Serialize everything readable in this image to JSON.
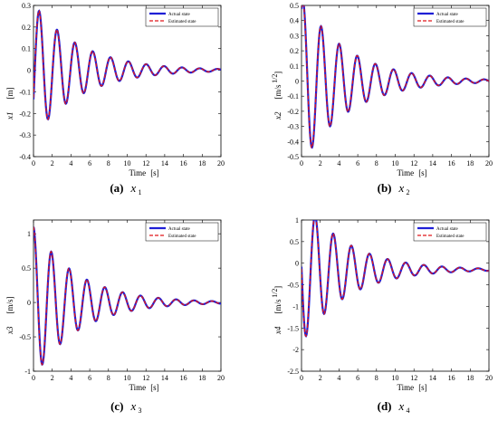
{
  "chart_data": [
    {
      "type": "line",
      "caption_letter": "(a)",
      "caption_var": "x",
      "caption_sub": "1",
      "ylabel_var": "x1",
      "ylabel_unit": "[m]",
      "xlabel": "Time",
      "xunit": "[s]",
      "xlim": [
        0,
        20
      ],
      "ylim": [
        -0.4,
        0.3
      ],
      "xticks": [
        "0",
        "2",
        "4",
        "6",
        "8",
        "10",
        "12",
        "14",
        "16",
        "18",
        "20"
      ],
      "yticks": [
        "-0.4",
        "-0.3",
        "-0.2",
        "-0.1",
        "0",
        "0.1",
        "0.2",
        "0.3"
      ],
      "legend": [
        "Actual state",
        "Estimated state"
      ],
      "legend_position": "top-right",
      "signal": {
        "A": 0.31,
        "alpha": 0.2,
        "omega": 3.3,
        "phi": -0.45,
        "offset": 0.0
      }
    },
    {
      "type": "line",
      "caption_letter": "(b)",
      "caption_var": "x",
      "caption_sub": "2",
      "ylabel_var": "x2",
      "ylabel_unit": "[m/s",
      "ylabel_sup": "1/2",
      "ylabel_close": "]",
      "xlabel": "Time",
      "xunit": "[s]",
      "xlim": [
        0,
        20
      ],
      "ylim": [
        -0.5,
        0.5
      ],
      "xticks": [
        "0",
        "2",
        "4",
        "6",
        "8",
        "10",
        "12",
        "14",
        "16",
        "18",
        "20"
      ],
      "yticks": [
        "-0.5",
        "-0.4",
        "-0.3",
        "-0.2",
        "-0.1",
        "0",
        "0.1",
        "0.2",
        "0.3",
        "0.4",
        "0.5"
      ],
      "legend": [
        "Actual state",
        "Estimated state"
      ],
      "legend_position": "top-right",
      "signal": {
        "A": 0.55,
        "alpha": 0.2,
        "omega": 3.25,
        "phi": 1.05,
        "offset": 0.0
      }
    },
    {
      "type": "line",
      "caption_letter": "(c)",
      "caption_var": "x",
      "caption_sub": "3",
      "ylabel_var": "x3",
      "ylabel_unit": "[m/s]",
      "xlabel": "Time",
      "xunit": "[s]",
      "xlim": [
        0,
        20
      ],
      "ylim": [
        -1,
        1.2
      ],
      "xticks": [
        "0",
        "2",
        "4",
        "6",
        "8",
        "10",
        "12",
        "14",
        "16",
        "18",
        "20"
      ],
      "yticks": [
        "-1",
        "-0.5",
        "0",
        "0.5",
        "1"
      ],
      "legend": [
        "Actual state",
        "Estimated state"
      ],
      "legend_position": "top-right",
      "signal": {
        "A": 1.1,
        "alpha": 0.21,
        "omega": 3.3,
        "phi": 1.57,
        "offset": 0.0
      }
    },
    {
      "type": "line",
      "caption_letter": "(d)",
      "caption_var": "x",
      "caption_sub": "4",
      "ylabel_var": "x4",
      "ylabel_unit": "[m/s",
      "ylabel_sup": "1/2",
      "ylabel_close": "]",
      "xlabel": "Time",
      "xunit": "[s]",
      "xlim": [
        0,
        20
      ],
      "ylim": [
        -2.5,
        1
      ],
      "xticks": [
        "0",
        "2",
        "4",
        "6",
        "8",
        "10",
        "12",
        "14",
        "16",
        "18",
        "20"
      ],
      "yticks": [
        "-2.5",
        "-2",
        "-1.5",
        "-1",
        "-0.5",
        "0",
        "0.5",
        "1"
      ],
      "legend": [
        "Actual state",
        "Estimated state"
      ],
      "legend_position": "top-right",
      "signal": {
        "A": 1.7,
        "alpha": 0.21,
        "omega": 3.25,
        "phi": 3.1,
        "offset": -0.15
      }
    }
  ],
  "colors": {
    "actual": "#1f1fd6",
    "estimated": "#e0161b"
  }
}
